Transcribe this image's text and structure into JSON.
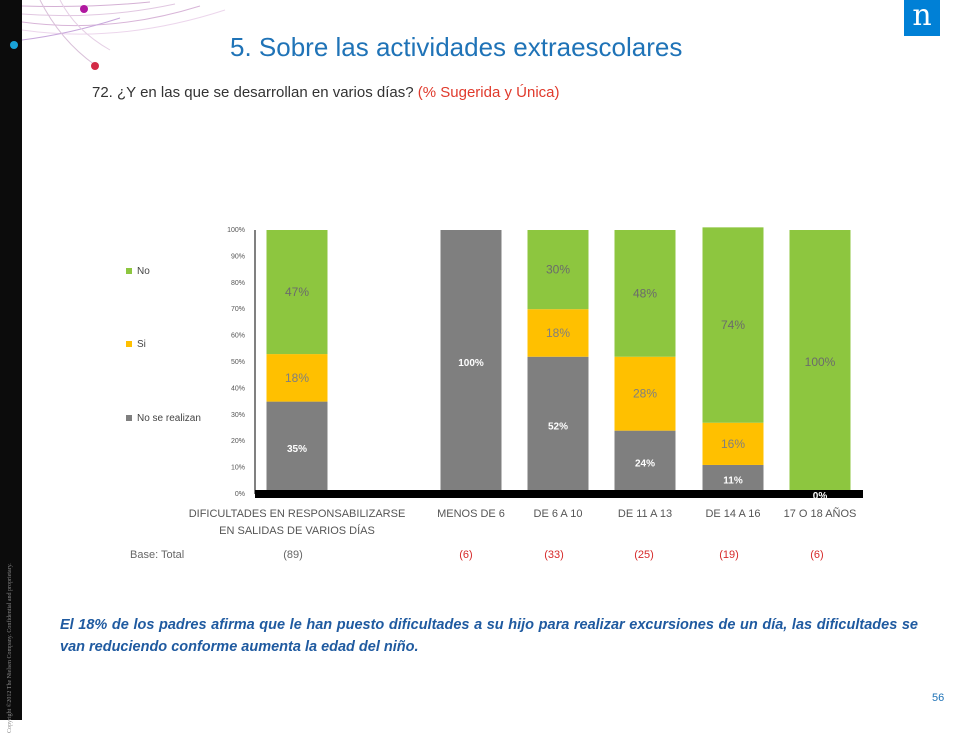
{
  "slide": {
    "title": "5. Sobre las actividades extraescolares",
    "question": "72. ¿Y en las que se desarrollan en varios días?",
    "question_note": "(% Sugerida y Única)",
    "brand_letter": "n",
    "copyright": "Copyright ©2012 The Nielsen Company. Confidential and proprietary.",
    "base_label": "Base: Total",
    "bases": [
      {
        "text": "(89)",
        "highlight": false
      },
      {
        "text": "(6)",
        "highlight": true
      },
      {
        "text": "(33)",
        "highlight": true
      },
      {
        "text": "(25)",
        "highlight": true
      },
      {
        "text": "(19)",
        "highlight": true
      },
      {
        "text": "(6)",
        "highlight": true
      }
    ],
    "note": "El 18% de los padres afirma que le han puesto dificultades a su hijo para realizar excursiones de un día, las dificultades se van reduciendo conforme aumenta la edad del niño.",
    "page_number": "56"
  },
  "chart_data": {
    "type": "bar",
    "stacked": true,
    "categories": [
      [
        "DIFICULTADES EN RESPONSABILIZARSE",
        "EN SALIDAS DE VARIOS DÍAS"
      ],
      [
        "MENOS DE 6"
      ],
      [
        "DE 6  A 10"
      ],
      [
        "DE 11  A 13"
      ],
      [
        "DE 14  A 16"
      ],
      [
        "17 O 18 AÑOS"
      ]
    ],
    "series": [
      {
        "name": "No se realizan",
        "color": "#7f7f7f",
        "label_color": "#ffffff",
        "values": [
          35,
          100,
          52,
          24,
          11,
          0
        ]
      },
      {
        "name": "Si",
        "color": "#ffc000",
        "label_color": "#7f7f7f",
        "values": [
          18,
          0,
          18,
          28,
          16,
          0
        ]
      },
      {
        "name": "No",
        "color": "#8dc63f",
        "label_color": "#6b6b6b",
        "values": [
          47,
          0,
          30,
          48,
          74,
          100
        ]
      }
    ],
    "data_labels": [
      [
        "35%",
        null,
        "18%",
        null,
        "47%"
      ],
      [
        "100%",
        null,
        null
      ],
      [
        "52%",
        "18%",
        "30%"
      ],
      [
        "24%",
        "28%",
        "48%"
      ],
      [
        "11%",
        "16%",
        "74%"
      ],
      [
        "0%",
        null,
        "100%"
      ]
    ],
    "y_ticks": [
      "0%",
      "10%",
      "20%",
      "30%",
      "40%",
      "50%",
      "60%",
      "70%",
      "80%",
      "90%",
      "100%"
    ],
    "ylim": [
      0,
      100
    ],
    "legend_position": "inside-left"
  }
}
